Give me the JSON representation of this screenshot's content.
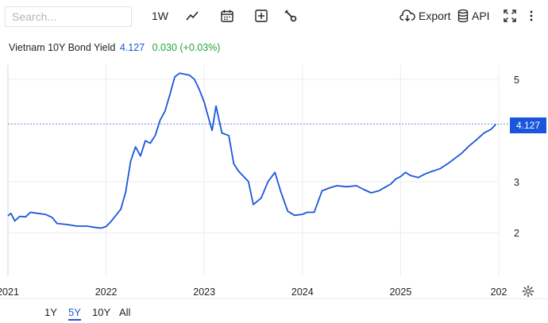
{
  "toolbar": {
    "search_placeholder": "Search...",
    "interval_label": "1W",
    "export_label": "Export",
    "api_label": "API"
  },
  "header": {
    "name": "Vietnam 10Y Bond Yield",
    "last": "4.127",
    "change": "0.030 (+0.03%)"
  },
  "price_tag": "4.127",
  "ranges": [
    {
      "label": "1Y",
      "active": false
    },
    {
      "label": "5Y",
      "active": true
    },
    {
      "label": "10Y",
      "active": false
    },
    {
      "label": "All",
      "active": false
    }
  ],
  "colors": {
    "line": "#1a56db",
    "positive": "#22a33a",
    "grid": "#ececec"
  },
  "icons": [
    "line-chart-icon",
    "calendar-icon",
    "plus-box-icon",
    "wrench-icon",
    "cloud-download-icon",
    "database-icon",
    "fullscreen-icon",
    "more-vertical-icon",
    "gear-icon"
  ],
  "chart_data": {
    "type": "line",
    "title": "Vietnam 10Y Bond Yield",
    "y_ticks": [
      2,
      3,
      5
    ],
    "x_ticks": [
      "2021",
      "2022",
      "2023",
      "2024",
      "2025",
      "202"
    ],
    "x_range": [
      2021.0,
      2026.0
    ],
    "y_range": [
      1.15,
      5.9
    ],
    "last_value": 4.127,
    "points": [
      [
        2021.0,
        2.33
      ],
      [
        2021.03,
        2.38
      ],
      [
        2021.07,
        2.23
      ],
      [
        2021.12,
        2.32
      ],
      [
        2021.18,
        2.31
      ],
      [
        2021.23,
        2.4
      ],
      [
        2021.3,
        2.38
      ],
      [
        2021.38,
        2.36
      ],
      [
        2021.45,
        2.3
      ],
      [
        2021.5,
        2.18
      ],
      [
        2021.6,
        2.16
      ],
      [
        2021.7,
        2.13
      ],
      [
        2021.8,
        2.13
      ],
      [
        2021.9,
        2.1
      ],
      [
        2021.95,
        2.09
      ],
      [
        2022.0,
        2.12
      ],
      [
        2022.05,
        2.22
      ],
      [
        2022.1,
        2.34
      ],
      [
        2022.15,
        2.46
      ],
      [
        2022.2,
        2.8
      ],
      [
        2022.25,
        3.4
      ],
      [
        2022.3,
        3.68
      ],
      [
        2022.35,
        3.5
      ],
      [
        2022.4,
        3.8
      ],
      [
        2022.45,
        3.75
      ],
      [
        2022.5,
        3.9
      ],
      [
        2022.55,
        4.2
      ],
      [
        2022.6,
        4.38
      ],
      [
        2022.65,
        4.7
      ],
      [
        2022.7,
        5.05
      ],
      [
        2022.75,
        5.12
      ],
      [
        2022.8,
        5.1
      ],
      [
        2022.85,
        5.08
      ],
      [
        2022.9,
        5.0
      ],
      [
        2022.95,
        4.8
      ],
      [
        2023.0,
        4.55
      ],
      [
        2023.05,
        4.2
      ],
      [
        2023.08,
        4.0
      ],
      [
        2023.12,
        4.48
      ],
      [
        2023.18,
        3.95
      ],
      [
        2023.25,
        3.9
      ],
      [
        2023.3,
        3.35
      ],
      [
        2023.35,
        3.2
      ],
      [
        2023.45,
        3.0
      ],
      [
        2023.5,
        2.55
      ],
      [
        2023.58,
        2.68
      ],
      [
        2023.65,
        3.0
      ],
      [
        2023.72,
        3.18
      ],
      [
        2023.78,
        2.8
      ],
      [
        2023.85,
        2.42
      ],
      [
        2023.92,
        2.34
      ],
      [
        2024.0,
        2.36
      ],
      [
        2024.05,
        2.4
      ],
      [
        2024.12,
        2.4
      ],
      [
        2024.2,
        2.82
      ],
      [
        2024.28,
        2.88
      ],
      [
        2024.35,
        2.92
      ],
      [
        2024.45,
        2.9
      ],
      [
        2024.55,
        2.92
      ],
      [
        2024.62,
        2.85
      ],
      [
        2024.7,
        2.78
      ],
      [
        2024.78,
        2.82
      ],
      [
        2024.85,
        2.9
      ],
      [
        2024.9,
        2.95
      ],
      [
        2024.95,
        3.05
      ],
      [
        2025.0,
        3.1
      ],
      [
        2025.05,
        3.18
      ],
      [
        2025.1,
        3.12
      ],
      [
        2025.18,
        3.08
      ],
      [
        2025.25,
        3.15
      ],
      [
        2025.32,
        3.2
      ],
      [
        2025.4,
        3.25
      ],
      [
        2025.48,
        3.35
      ],
      [
        2025.55,
        3.45
      ],
      [
        2025.62,
        3.55
      ],
      [
        2025.7,
        3.7
      ],
      [
        2025.78,
        3.83
      ],
      [
        2025.85,
        3.95
      ],
      [
        2025.92,
        4.02
      ],
      [
        2025.97,
        4.12
      ]
    ]
  }
}
